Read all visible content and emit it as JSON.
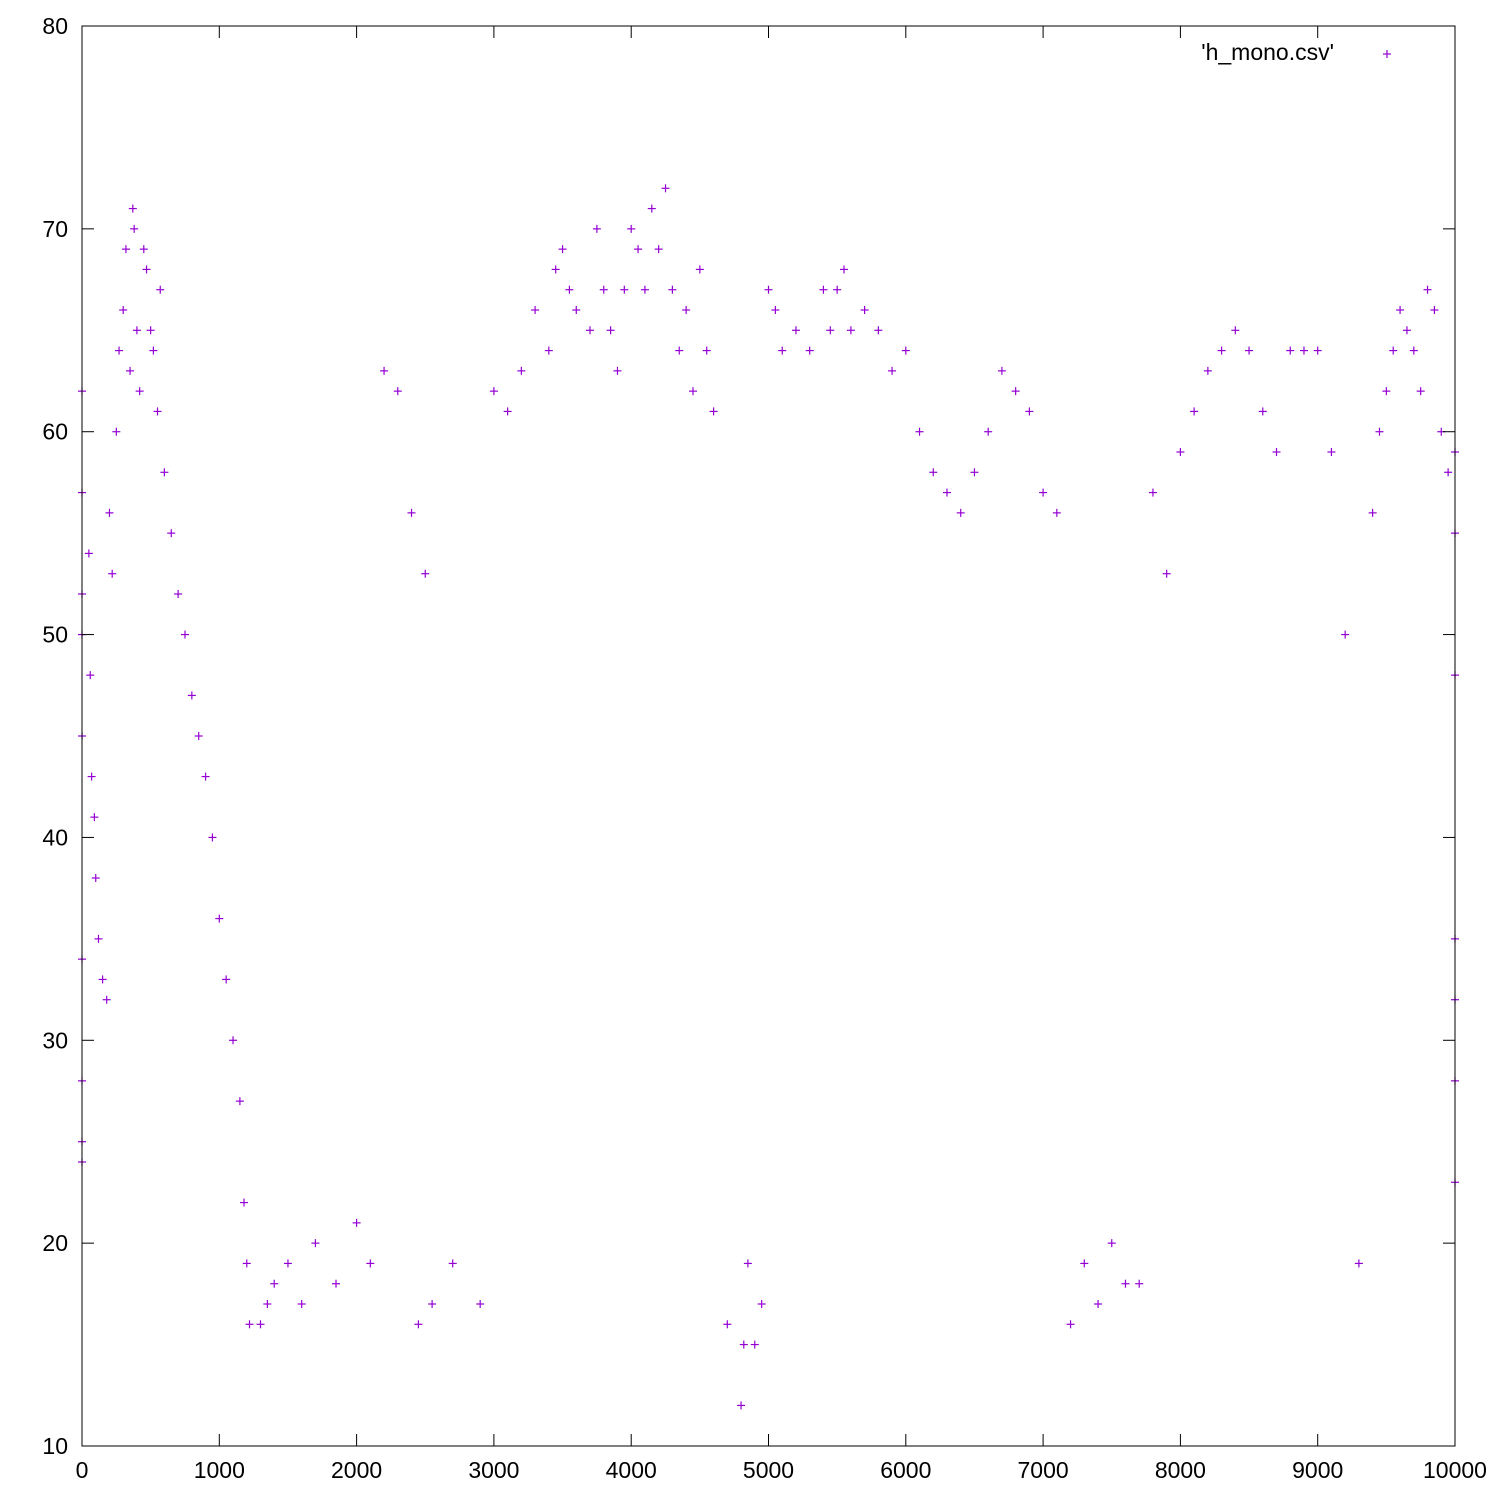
{
  "chart_data": {
    "type": "scatter",
    "title": "",
    "xlabel": "",
    "ylabel": "",
    "xlim": [
      0,
      10000
    ],
    "ylim": [
      10,
      80
    ],
    "x_ticks": [
      "0",
      "1000",
      "2000",
      "3000",
      "4000",
      "5000",
      "6000",
      "7000",
      "8000",
      "9000",
      "10000"
    ],
    "y_ticks": [
      "10",
      "20",
      "30",
      "40",
      "50",
      "60",
      "70",
      "80"
    ],
    "grid": false,
    "legend_position": "top-right",
    "marker": "plus",
    "color": "#9400d3",
    "series": [
      {
        "name": "'h_mono.csv'",
        "note_sampled_points": "dense cloud, representative sample of visible points",
        "points": [
          [
            0,
            62
          ],
          [
            0,
            57
          ],
          [
            0,
            52
          ],
          [
            0,
            50
          ],
          [
            0,
            45
          ],
          [
            0,
            34
          ],
          [
            0,
            28
          ],
          [
            0,
            25
          ],
          [
            0,
            24
          ],
          [
            50,
            54
          ],
          [
            60,
            48
          ],
          [
            70,
            43
          ],
          [
            90,
            41
          ],
          [
            100,
            38
          ],
          [
            120,
            35
          ],
          [
            150,
            33
          ],
          [
            180,
            32
          ],
          [
            200,
            56
          ],
          [
            220,
            53
          ],
          [
            250,
            60
          ],
          [
            270,
            64
          ],
          [
            300,
            66
          ],
          [
            320,
            69
          ],
          [
            350,
            63
          ],
          [
            370,
            71
          ],
          [
            380,
            70
          ],
          [
            400,
            65
          ],
          [
            420,
            62
          ],
          [
            450,
            69
          ],
          [
            470,
            68
          ],
          [
            500,
            65
          ],
          [
            520,
            64
          ],
          [
            550,
            61
          ],
          [
            570,
            67
          ],
          [
            600,
            58
          ],
          [
            650,
            55
          ],
          [
            700,
            52
          ],
          [
            750,
            50
          ],
          [
            800,
            47
          ],
          [
            850,
            45
          ],
          [
            900,
            43
          ],
          [
            950,
            40
          ],
          [
            1000,
            36
          ],
          [
            1050,
            33
          ],
          [
            1100,
            30
          ],
          [
            1150,
            27
          ],
          [
            1180,
            22
          ],
          [
            1200,
            19
          ],
          [
            1220,
            16
          ],
          [
            1300,
            16
          ],
          [
            1350,
            17
          ],
          [
            1400,
            18
          ],
          [
            1500,
            19
          ],
          [
            1600,
            17
          ],
          [
            1700,
            20
          ],
          [
            1850,
            18
          ],
          [
            2000,
            21
          ],
          [
            2100,
            19
          ],
          [
            2200,
            63
          ],
          [
            2300,
            62
          ],
          [
            2400,
            56
          ],
          [
            2500,
            53
          ],
          [
            2450,
            16
          ],
          [
            2550,
            17
          ],
          [
            2700,
            19
          ],
          [
            2900,
            17
          ],
          [
            3000,
            62
          ],
          [
            3100,
            61
          ],
          [
            3200,
            63
          ],
          [
            3300,
            66
          ],
          [
            3400,
            64
          ],
          [
            3450,
            68
          ],
          [
            3500,
            69
          ],
          [
            3550,
            67
          ],
          [
            3600,
            66
          ],
          [
            3700,
            65
          ],
          [
            3750,
            70
          ],
          [
            3800,
            67
          ],
          [
            3850,
            65
          ],
          [
            3900,
            63
          ],
          [
            3950,
            67
          ],
          [
            4000,
            70
          ],
          [
            4050,
            69
          ],
          [
            4100,
            67
          ],
          [
            4150,
            71
          ],
          [
            4200,
            69
          ],
          [
            4250,
            72
          ],
          [
            4300,
            67
          ],
          [
            4350,
            64
          ],
          [
            4400,
            66
          ],
          [
            4450,
            62
          ],
          [
            4500,
            68
          ],
          [
            4550,
            64
          ],
          [
            4600,
            61
          ],
          [
            4700,
            16
          ],
          [
            4800,
            12
          ],
          [
            4820,
            15
          ],
          [
            4850,
            19
          ],
          [
            4900,
            15
          ],
          [
            4950,
            17
          ],
          [
            5000,
            67
          ],
          [
            5050,
            66
          ],
          [
            5100,
            64
          ],
          [
            5200,
            65
          ],
          [
            5300,
            64
          ],
          [
            5400,
            67
          ],
          [
            5450,
            65
          ],
          [
            5500,
            67
          ],
          [
            5550,
            68
          ],
          [
            5600,
            65
          ],
          [
            5700,
            66
          ],
          [
            5800,
            65
          ],
          [
            5900,
            63
          ],
          [
            6000,
            64
          ],
          [
            6100,
            60
          ],
          [
            6200,
            58
          ],
          [
            6300,
            57
          ],
          [
            6400,
            56
          ],
          [
            6500,
            58
          ],
          [
            6600,
            60
          ],
          [
            6700,
            63
          ],
          [
            6800,
            62
          ],
          [
            6900,
            61
          ],
          [
            7000,
            57
          ],
          [
            7100,
            56
          ],
          [
            7200,
            16
          ],
          [
            7300,
            19
          ],
          [
            7400,
            17
          ],
          [
            7500,
            20
          ],
          [
            7600,
            18
          ],
          [
            7700,
            18
          ],
          [
            7800,
            57
          ],
          [
            7900,
            53
          ],
          [
            8000,
            59
          ],
          [
            8100,
            61
          ],
          [
            8200,
            63
          ],
          [
            8300,
            64
          ],
          [
            8400,
            65
          ],
          [
            8500,
            64
          ],
          [
            8600,
            61
          ],
          [
            8700,
            59
          ],
          [
            8800,
            64
          ],
          [
            8900,
            64
          ],
          [
            9000,
            64
          ],
          [
            9100,
            59
          ],
          [
            9200,
            50
          ],
          [
            9300,
            19
          ],
          [
            9400,
            56
          ],
          [
            9450,
            60
          ],
          [
            9500,
            62
          ],
          [
            9550,
            64
          ],
          [
            9600,
            66
          ],
          [
            9650,
            65
          ],
          [
            9700,
            64
          ],
          [
            9750,
            62
          ],
          [
            9800,
            67
          ],
          [
            9850,
            66
          ],
          [
            9900,
            60
          ],
          [
            9950,
            58
          ],
          [
            10000,
            59
          ],
          [
            10000,
            55
          ],
          [
            10000,
            48
          ],
          [
            10000,
            35
          ],
          [
            10000,
            32
          ],
          [
            10000,
            28
          ],
          [
            10000,
            23
          ]
        ]
      }
    ]
  }
}
